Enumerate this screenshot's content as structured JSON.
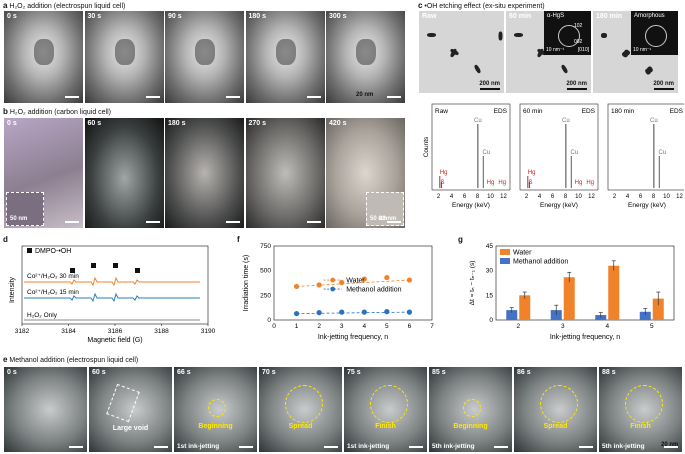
{
  "panel_a": {
    "letter": "a",
    "title": "H₂O₂ addition (electrospun liquid cell)",
    "times": [
      "0 s",
      "30 s",
      "90 s",
      "180 s",
      "300 s"
    ],
    "scale": "20 nm"
  },
  "panel_b": {
    "letter": "b",
    "title": "H₂O₂ addition (carbon liquid cell)",
    "times": [
      "0 s",
      "60 s",
      "180 s",
      "270 s",
      "420 s"
    ],
    "inset_scale": "50 nm",
    "scale": "20 nm"
  },
  "panel_c": {
    "letter": "c",
    "title": "•OH etching effect (ex-situ experiment)",
    "tem": [
      {
        "time": "Raw",
        "scale": "200 nm"
      },
      {
        "time": "60 min",
        "scale": "200 nm",
        "phase": "α-HgS",
        "rings": [
          "102",
          "002"
        ],
        "zone": "[010]",
        "fft_scale": "10 nm⁻¹"
      },
      {
        "time": "180 min",
        "scale": "200 nm",
        "phase": "Amorphous",
        "fft_scale": "10 nm⁻¹"
      }
    ],
    "eds": [
      {
        "tag": "Raw",
        "method": "EDS",
        "peaks": [
          "Hg",
          "S",
          "Cu",
          "Cu",
          "Hg",
          "Hg"
        ]
      },
      {
        "tag": "60 min",
        "method": "EDS",
        "peaks": [
          "Hg",
          "S",
          "Cu",
          "Cu",
          "Hg",
          "Hg"
        ]
      },
      {
        "tag": "180 min",
        "method": "EDS",
        "peaks": [
          "Cu",
          "Cu"
        ]
      }
    ],
    "eds_ylabel": "Counts",
    "eds_xlabel": "Energy (keV)",
    "eds_ticks": [
      "2",
      "4",
      "6",
      "8",
      "10",
      "12"
    ]
  },
  "panel_d": {
    "letter": "d",
    "legend": "DMPO-•OH",
    "ylabel": "Intensity",
    "xlabel": "Magnetic field (G)",
    "traces": [
      "Co²⁺/H₂O₂ 30 min",
      "Co²⁺/H₂O₂ 15 min",
      "H₂O₂ Only"
    ],
    "colors": [
      "#f0822a",
      "#2a7fb8",
      "#888888"
    ],
    "xticks": [
      "3182",
      "3184",
      "3186",
      "3188",
      "3190"
    ]
  },
  "chart_data": [
    {
      "type": "scatter",
      "panel": "f",
      "xlabel": "Ink-jetting frequency, n",
      "ylabel": "Irradiation time (s)",
      "xlim": [
        0,
        7
      ],
      "ylim": [
        0,
        750
      ],
      "xticks": [
        "0",
        "1",
        "2",
        "3",
        "4",
        "5",
        "6",
        "7"
      ],
      "yticks": [
        "0",
        "250",
        "500",
        "750"
      ],
      "series": [
        {
          "name": "Water",
          "color": "#f0822a",
          "x": [
            1,
            2,
            3,
            4,
            5,
            6
          ],
          "values": [
            340,
            355,
            380,
            415,
            430,
            405
          ]
        },
        {
          "name": "Methanol addition",
          "color": "#2a6fc0",
          "x": [
            1,
            2,
            3,
            4,
            5,
            6
          ],
          "values": [
            65,
            75,
            80,
            80,
            85,
            80
          ]
        }
      ]
    },
    {
      "type": "bar",
      "panel": "g",
      "xlabel": "Ink-jetting frequency, n",
      "ylabel": "Δt = tₙ − tₙ₋₁ (s)",
      "ylim": [
        0,
        45
      ],
      "yticks": [
        "0",
        "15",
        "30",
        "45"
      ],
      "categories": [
        "2",
        "3",
        "4",
        "5"
      ],
      "series": [
        {
          "name": "Water",
          "color": "#f0822a",
          "values": [
            15,
            26,
            33,
            13
          ],
          "err": [
            2,
            3,
            3,
            4
          ]
        },
        {
          "name": "Methanol addition",
          "color": "#4472c4",
          "values": [
            6,
            6,
            3,
            5
          ],
          "err": [
            1.5,
            3,
            1.5,
            2
          ]
        }
      ]
    }
  ],
  "panel_e": {
    "letter": "e",
    "title": "Methanol addition (electrospun liquid cell)",
    "frames": [
      {
        "time": "0 s",
        "label": "",
        "step": ""
      },
      {
        "time": "60 s",
        "label": "Large void",
        "step": ""
      },
      {
        "time": "66 s",
        "label": "Beginning",
        "step": "1st ink-jetting"
      },
      {
        "time": "70 s",
        "label": "Spread",
        "step": ""
      },
      {
        "time": "75 s",
        "label": "Finish",
        "step": "1st ink-jetting"
      },
      {
        "time": "85 s",
        "label": "Beginning",
        "step": "5th ink-jetting"
      },
      {
        "time": "86 s",
        "label": "Spread",
        "step": ""
      },
      {
        "time": "88 s",
        "label": "Finish",
        "step": "5th ink-jetting"
      }
    ],
    "scale": "20 nm"
  },
  "panel_f": {
    "letter": "f"
  },
  "panel_g": {
    "letter": "g"
  }
}
